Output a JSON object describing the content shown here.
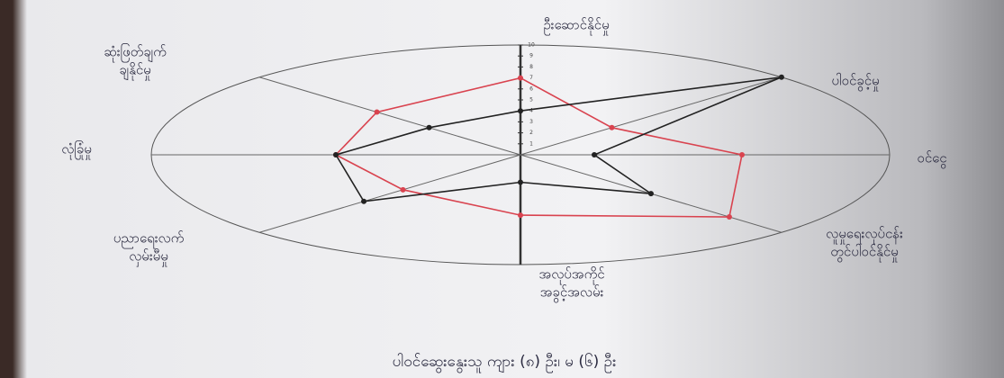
{
  "chart_data": {
    "type": "radar",
    "categories": [
      [
        "ဦးဆောင်နိုင်မှု"
      ],
      [
        "ပါဝင်ခွင့်မှု"
      ],
      [
        "ဝင်ငွေ"
      ],
      [
        "လူမှုရေးလုပ်ငန်း",
        "တွင်ပါဝင်နိုင်မှု"
      ],
      [
        "အလုပ်အကိုင်",
        "အခွင့်အလမ်း"
      ],
      [
        "ပညာရေးလက်",
        "လှမ်းမီမှု"
      ],
      [
        "လုံခြုံမှု"
      ],
      [
        "ဆုံးဖြတ်ချက်",
        "ချနိုင်မှု"
      ]
    ],
    "series": [
      {
        "color": "#d9434f",
        "values": [
          7,
          3.5,
          6,
          8,
          5.5,
          4.5,
          5,
          5.5
        ]
      },
      {
        "color": "#222222",
        "values": [
          4,
          10,
          2,
          5,
          2.5,
          6,
          5,
          3.5
        ]
      }
    ],
    "rlim": [
      0,
      10
    ],
    "rticks": [
      1,
      2,
      3,
      4,
      5,
      6,
      7,
      8,
      9,
      10
    ],
    "footnote": "ပါဝင်ဆွေးနွေးသူ ကျား (၈) ဦး၊ မ (၆) ဦး"
  }
}
